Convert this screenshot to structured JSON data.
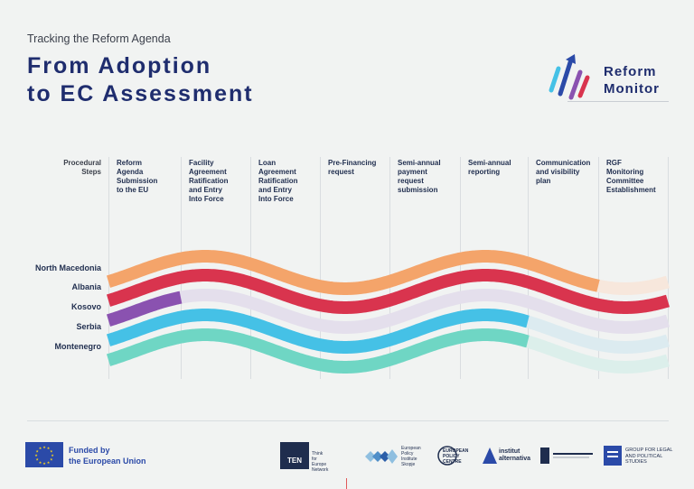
{
  "header": {
    "kicker": "Tracking the Reform Agenda",
    "title_line1": "From Adoption",
    "title_line2": "to EC Assessment"
  },
  "logo": {
    "line1": "Reform",
    "line2": "Monitor",
    "icon": "reform-monitor-arrow-icon"
  },
  "steps_label_line1": "Procedural",
  "steps_label_line2": "Steps",
  "steps": [
    [
      "Reform",
      "Agenda",
      "Submission",
      "to the EU"
    ],
    [
      "Facility",
      "Agreement",
      "Ratification",
      "and Entry",
      "Into Force"
    ],
    [
      "Loan",
      "Agreement",
      "Ratification",
      "and Entry",
      "Into Force"
    ],
    [
      "Pre-Financing",
      "request"
    ],
    [
      "Semi-annual",
      "payment",
      "request",
      "submission"
    ],
    [
      "Semi-annual",
      "reporting"
    ],
    [
      "Communication",
      "and visibility",
      "plan"
    ],
    [
      "RGF",
      "Monitoring",
      "Committee",
      "Establishment"
    ]
  ],
  "countries": [
    {
      "name": "North Macedonia",
      "color": "#f4a46a",
      "steps_completed": 7
    },
    {
      "name": "Albania",
      "color": "#d9344e",
      "steps_completed": 8
    },
    {
      "name": "Kosovo",
      "color": "#8a52b0",
      "steps_completed": 1
    },
    {
      "name": "Serbia",
      "color": "#45c1e6",
      "steps_completed": 6
    },
    {
      "name": "Montenegro",
      "color": "#6fd6c4",
      "steps_completed": 6
    }
  ],
  "faded_colors": {
    "#f4a46a": "#f7e7dc",
    "#d9344e": "#f0d7dc",
    "#8a52b0": "#e4dfec",
    "#45c1e6": "#dcebf0",
    "#6fd6c4": "#dcefeb"
  },
  "footer": {
    "eu_line1": "Funded by",
    "eu_line2": "the European Union",
    "eu_flag_icon": "eu-flag-icon",
    "partners": [
      {
        "name": "TEN",
        "sub": [
          "Think",
          "for",
          "Europe",
          "Network"
        ]
      },
      {
        "name": "European Policy Institute Skopje",
        "lines": [
          "European",
          "Policy",
          "Institute",
          "Skopje"
        ]
      },
      {
        "name": "European Policy Centre",
        "lines": [
          "EUROPEAN",
          "POLICY",
          "CENTRE"
        ]
      },
      {
        "name": "institut alternativa",
        "lines": [
          "institut",
          "alternativa"
        ]
      },
      {
        "name": "ISAC",
        "lines": []
      },
      {
        "name": "Group for Legal and Political Studies",
        "lines": [
          "GROUP FOR LEGAL",
          "AND POLITICAL",
          "STUDIES"
        ]
      }
    ]
  }
}
